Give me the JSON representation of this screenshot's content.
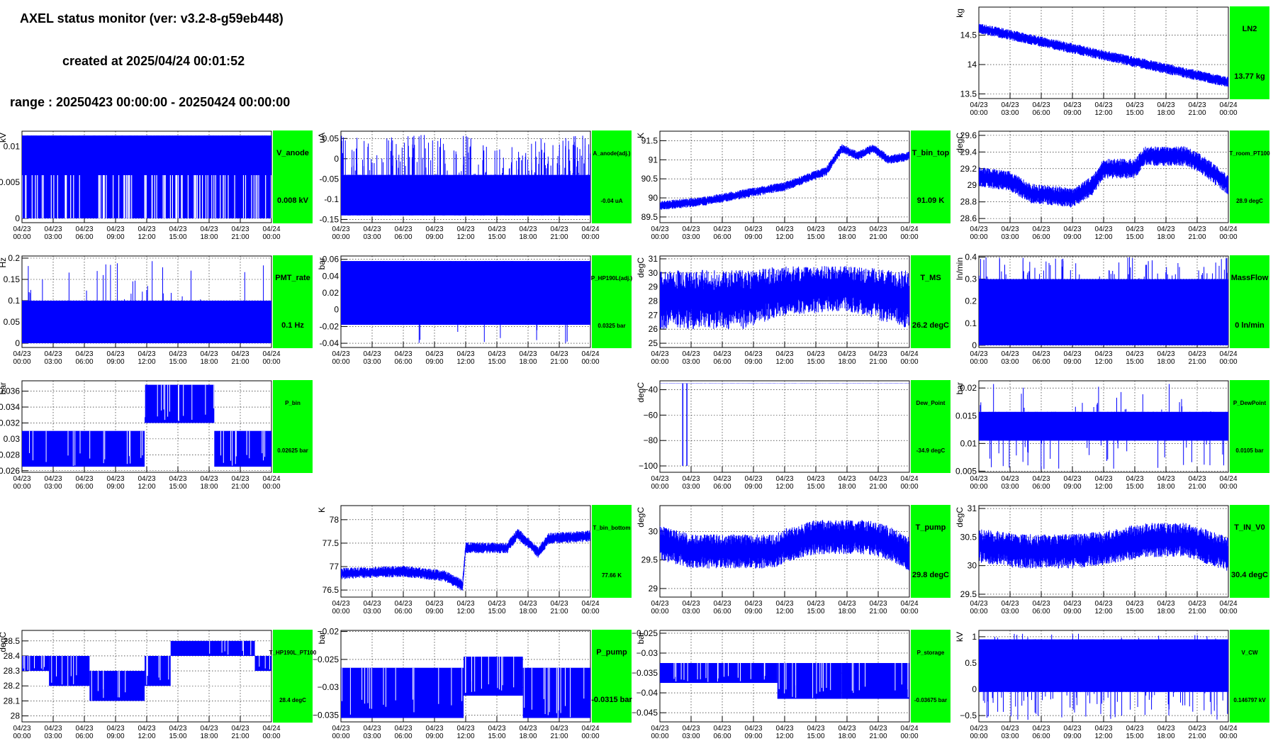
{
  "header": {
    "title": "AXEL status monitor (ver: v3.2-8-g59eb448)",
    "created": "created at 2025/04/24 00:01:52",
    "range": "range : 20250423 00:00:00 - 20250424 00:00:00"
  },
  "x_ticks": [
    [
      "04/23",
      "00:00"
    ],
    [
      "04/23",
      "03:00"
    ],
    [
      "04/23",
      "06:00"
    ],
    [
      "04/23",
      "09:00"
    ],
    [
      "04/23",
      "12:00"
    ],
    [
      "04/23",
      "15:00"
    ],
    [
      "04/23",
      "18:00"
    ],
    [
      "04/23",
      "21:00"
    ],
    [
      "04/24",
      "00:00"
    ]
  ],
  "colors": {
    "trace": "#0000ff",
    "label_box": "#00ff00",
    "grid": "#000000",
    "frame": "#000000"
  },
  "chart_data": [
    {
      "id": "ln2",
      "type": "line",
      "row": 0,
      "col": 3,
      "name": "LN2",
      "value": "13.77 kg",
      "ylabel": "kg",
      "ylim": [
        13.42,
        14.98
      ],
      "yticks": [
        {
          "v": 13.5,
          "t": "13.5"
        },
        {
          "v": 14,
          "t": "14"
        },
        {
          "v": 14.5,
          "t": "14.5"
        }
      ],
      "trend": [
        [
          0,
          14.62
        ],
        [
          24,
          13.7
        ]
      ],
      "noise": 0.09,
      "label_small": false
    },
    {
      "id": "v_anode",
      "type": "line",
      "row": 1,
      "col": 0,
      "name": "V_anode",
      "value": "0.008 kV",
      "ylabel": "kV",
      "ylim": [
        -0.0006,
        0.0121
      ],
      "yticks": [
        {
          "v": 0,
          "t": "0"
        },
        {
          "v": 0.005,
          "t": "0.005"
        },
        {
          "v": 0.01,
          "t": "0.01"
        }
      ],
      "levels": [
        0.0,
        0.0115
      ],
      "dense_band": [
        0.0,
        0.0115
      ],
      "upper_band": [
        0.006,
        0.0115
      ],
      "spikes_per_hour": 9,
      "spike_range": [
        0.0,
        0.006
      ],
      "label_small": false
    },
    {
      "id": "a_anode",
      "type": "line",
      "row": 1,
      "col": 1,
      "name": "A_anode(adj.)",
      "value": "-0.04 uA",
      "ylabel": "uA",
      "ylim": [
        -0.158,
        0.068
      ],
      "yticks": [
        {
          "v": -0.15,
          "t": "-0.15"
        },
        {
          "v": -0.1,
          "t": "-0.1"
        },
        {
          "v": -0.05,
          "t": "-0.05"
        },
        {
          "v": 0,
          "t": "0"
        },
        {
          "v": 0.05,
          "t": "0.05"
        }
      ],
      "dense_band": [
        -0.14,
        -0.04
      ],
      "spikes_per_hour": 8,
      "spike_range": [
        -0.04,
        0.06
      ],
      "label_small": true
    },
    {
      "id": "t_bin_top",
      "type": "line",
      "row": 1,
      "col": 2,
      "name": "T_bin_top",
      "value": "91.09 K",
      "ylabel": "K",
      "ylim": [
        89.35,
        91.75
      ],
      "yticks": [
        {
          "v": 89.5,
          "t": "89.5"
        },
        {
          "v": 90,
          "t": "90"
        },
        {
          "v": 90.5,
          "t": "90.5"
        },
        {
          "v": 91,
          "t": "91"
        },
        {
          "v": 91.5,
          "t": "91.5"
        }
      ],
      "trend": [
        [
          0,
          89.8
        ],
        [
          4,
          89.9
        ],
        [
          8,
          90.1
        ],
        [
          12,
          90.3
        ],
        [
          14,
          90.5
        ],
        [
          16,
          90.7
        ],
        [
          17.5,
          91.3
        ],
        [
          19,
          91.1
        ],
        [
          20.5,
          91.3
        ],
        [
          22,
          91.0
        ],
        [
          24,
          91.1
        ]
      ],
      "noise": 0.12,
      "label_small": false
    },
    {
      "id": "t_room",
      "type": "line",
      "row": 1,
      "col": 3,
      "name": "T_room_PT100",
      "value": "28.9 degC",
      "ylabel": "degC",
      "ylim": [
        28.55,
        29.65
      ],
      "yticks": [
        {
          "v": 28.6,
          "t": "28.6"
        },
        {
          "v": 28.8,
          "t": "28.8"
        },
        {
          "v": 29,
          "t": "29"
        },
        {
          "v": 29.2,
          "t": "29.2"
        },
        {
          "v": 29.4,
          "t": "29.4"
        },
        {
          "v": 29.6,
          "t": "29.6"
        }
      ],
      "trend": [
        [
          0,
          29.1
        ],
        [
          3,
          29.05
        ],
        [
          5,
          28.9
        ],
        [
          9,
          28.85
        ],
        [
          11,
          29.0
        ],
        [
          12,
          29.2
        ],
        [
          15,
          29.2
        ],
        [
          16,
          29.35
        ],
        [
          20,
          29.35
        ],
        [
          22,
          29.2
        ],
        [
          24,
          29.0
        ]
      ],
      "noise": 0.12,
      "label_small": true
    },
    {
      "id": "pmt_rate",
      "type": "line",
      "row": 2,
      "col": 0,
      "name": "PMT_rate",
      "value": "0.1 Hz",
      "ylabel": "Hz",
      "ylim": [
        -0.01,
        0.205
      ],
      "yticks": [
        {
          "v": 0,
          "t": "0"
        },
        {
          "v": 0.05,
          "t": "0.05"
        },
        {
          "v": 0.1,
          "t": "0.1"
        },
        {
          "v": 0.15,
          "t": "0.15"
        },
        {
          "v": 0.2,
          "t": "0.2"
        }
      ],
      "dense_band": [
        0.0,
        0.1
      ],
      "spikes_per_hour": 1.2,
      "spike_range": [
        0.1,
        0.2
      ],
      "label_small": false
    },
    {
      "id": "p_hp190l",
      "type": "line",
      "row": 2,
      "col": 1,
      "name": "P_HP190L(adj.)",
      "value": "0.0325 bar",
      "ylabel": "bar",
      "ylim": [
        -0.045,
        0.064
      ],
      "yticks": [
        {
          "v": -0.04,
          "t": "-0.04"
        },
        {
          "v": -0.02,
          "t": "-0.02"
        },
        {
          "v": 0,
          "t": "0"
        },
        {
          "v": 0.02,
          "t": "0.02"
        },
        {
          "v": 0.04,
          "t": "0.04"
        },
        {
          "v": 0.06,
          "t": "0.06"
        }
      ],
      "dense_band": [
        -0.018,
        0.058
      ],
      "spikes_per_hour": 2,
      "spike_range": [
        -0.04,
        0.058
      ],
      "label_small": true
    },
    {
      "id": "t_ms",
      "type": "line",
      "row": 2,
      "col": 2,
      "name": "T_MS",
      "value": "26.2 degC",
      "ylabel": "degC",
      "ylim": [
        24.7,
        31.2
      ],
      "yticks": [
        {
          "v": 25,
          "t": "25"
        },
        {
          "v": 26,
          "t": "26"
        },
        {
          "v": 27,
          "t": "27"
        },
        {
          "v": 28,
          "t": "28"
        },
        {
          "v": 29,
          "t": "29"
        },
        {
          "v": 30,
          "t": "30"
        },
        {
          "v": 31,
          "t": "31"
        }
      ],
      "trend": [
        [
          0,
          28.0
        ],
        [
          12,
          28.2
        ],
        [
          24,
          28.4
        ]
      ],
      "envelope": [
        [
          0,
          26.0,
          30.2
        ],
        [
          8,
          26.0,
          30.2
        ],
        [
          12,
          27.0,
          30.5
        ],
        [
          18,
          27.3,
          30.5
        ],
        [
          24,
          26.0,
          30.2
        ]
      ],
      "label_small": false
    },
    {
      "id": "massflow",
      "type": "line",
      "row": 2,
      "col": 3,
      "name": "MassFlow",
      "value": "0 ln/min",
      "ylabel": "ln/min",
      "ylim": [
        -0.01,
        0.405
      ],
      "yticks": [
        {
          "v": 0,
          "t": "0"
        },
        {
          "v": 0.1,
          "t": "0.1"
        },
        {
          "v": 0.2,
          "t": "0.2"
        },
        {
          "v": 0.3,
          "t": "0.3"
        },
        {
          "v": 0.4,
          "t": "0.4"
        }
      ],
      "dense_band": [
        0.0,
        0.3
      ],
      "spikes_per_hour": 3,
      "spike_range": [
        0.3,
        0.4
      ],
      "label_small": false
    },
    {
      "id": "p_bin",
      "type": "line",
      "row": 3,
      "col": 0,
      "name": "P_bin",
      "value": "0.02625 bar",
      "ylabel": "bar",
      "ylim": [
        0.0258,
        0.0373
      ],
      "yticks": [
        {
          "v": 0.026,
          "t": "0.026"
        },
        {
          "v": 0.028,
          "t": "0.028"
        },
        {
          "v": 0.03,
          "t": "0.03"
        },
        {
          "v": 0.032,
          "t": "0.032"
        },
        {
          "v": 0.034,
          "t": "0.034"
        },
        {
          "v": 0.036,
          "t": "0.036"
        }
      ],
      "steps": [
        [
          0,
          11.8,
          0.0265,
          0.031
        ],
        [
          11.8,
          18.5,
          0.032,
          0.0368
        ],
        [
          18.5,
          24,
          0.0265,
          0.031
        ]
      ],
      "label_small": true
    },
    {
      "id": "dew_point",
      "type": "line",
      "row": 3,
      "col": 2,
      "name": "Dew_Point",
      "value": "-34.9 degC",
      "ylabel": "degC",
      "ylim": [
        -105,
        -33
      ],
      "yticks": [
        {
          "v": -100,
          "t": "−100"
        },
        {
          "v": -80,
          "t": "−80"
        },
        {
          "v": -60,
          "t": "−60"
        },
        {
          "v": -40,
          "t": "−40"
        }
      ],
      "trend": [
        [
          0,
          -35
        ],
        [
          24,
          -35
        ]
      ],
      "noise": 0.1,
      "spike_down": [
        [
          2.2,
          -100
        ],
        [
          2.6,
          -100
        ]
      ],
      "label_small": true
    },
    {
      "id": "p_dewpoint",
      "type": "line",
      "row": 3,
      "col": 3,
      "name": "P_DewPoint",
      "value": "0.0105 bar",
      "ylabel": "bar",
      "ylim": [
        0.0048,
        0.0213
      ],
      "yticks": [
        {
          "v": 0.005,
          "t": "0.005"
        },
        {
          "v": 0.01,
          "t": "0.01"
        },
        {
          "v": 0.015,
          "t": "0.015"
        },
        {
          "v": 0.02,
          "t": "0.02"
        }
      ],
      "dense_band": [
        0.0105,
        0.0157
      ],
      "spikes_per_hour": 4,
      "spike_range": [
        0.0053,
        0.021
      ],
      "label_small": true
    },
    {
      "id": "t_bin_bottom",
      "type": "line",
      "row": 4,
      "col": 1,
      "name": "T_bin_bottom",
      "value": "77.66 K",
      "ylabel": "K",
      "ylim": [
        76.35,
        78.3
      ],
      "yticks": [
        {
          "v": 76.5,
          "t": "76.5"
        },
        {
          "v": 77,
          "t": "77"
        },
        {
          "v": 77.5,
          "t": "77.5"
        },
        {
          "v": 78,
          "t": "78"
        }
      ],
      "trend": [
        [
          0,
          76.85
        ],
        [
          6,
          76.9
        ],
        [
          10,
          76.8
        ],
        [
          11.7,
          76.6
        ],
        [
          12,
          77.4
        ],
        [
          16,
          77.4
        ],
        [
          17,
          77.7
        ],
        [
          19,
          77.3
        ],
        [
          20,
          77.6
        ],
        [
          24,
          77.65
        ]
      ],
      "noise": 0.12,
      "label_small": true
    },
    {
      "id": "t_pump",
      "type": "line",
      "row": 4,
      "col": 2,
      "name": "T_pump",
      "value": "29.8 degC",
      "ylabel": "degC",
      "ylim": [
        28.85,
        30.45
      ],
      "yticks": [
        {
          "v": 29,
          "t": "29"
        },
        {
          "v": 29.5,
          "t": "29.5"
        },
        {
          "v": 30,
          "t": "30"
        }
      ],
      "trend": [
        [
          0,
          29.8
        ],
        [
          3,
          29.65
        ],
        [
          5,
          29.65
        ],
        [
          11,
          29.65
        ],
        [
          12,
          29.75
        ],
        [
          15,
          29.9
        ],
        [
          20,
          29.9
        ],
        [
          22,
          29.8
        ],
        [
          24,
          29.6
        ]
      ],
      "noise": 0.3,
      "label_small": false
    },
    {
      "id": "t_in_v0",
      "type": "line",
      "row": 4,
      "col": 3,
      "name": "T_IN_V0",
      "value": "30.4 degC",
      "ylabel": "degC",
      "ylim": [
        29.45,
        31.05
      ],
      "yticks": [
        {
          "v": 29.5,
          "t": "29.5"
        },
        {
          "v": 30,
          "t": "30"
        },
        {
          "v": 30.5,
          "t": "30.5"
        },
        {
          "v": 31,
          "t": "31"
        }
      ],
      "trend": [
        [
          0,
          30.35
        ],
        [
          4,
          30.25
        ],
        [
          9,
          30.25
        ],
        [
          12,
          30.3
        ],
        [
          16,
          30.45
        ],
        [
          20,
          30.45
        ],
        [
          24,
          30.2
        ]
      ],
      "noise": 0.3,
      "label_small": false
    },
    {
      "id": "t_hp190l",
      "type": "line",
      "row": 5,
      "col": 0,
      "name": "T_HP190L_PT100",
      "value": "28.4 degC",
      "ylabel": "degC",
      "ylim": [
        27.96,
        28.57
      ],
      "yticks": [
        {
          "v": 28,
          "t": "28"
        },
        {
          "v": 28.1,
          "t": "28.1"
        },
        {
          "v": 28.2,
          "t": "28.2"
        },
        {
          "v": 28.3,
          "t": "28.3"
        },
        {
          "v": 28.4,
          "t": "28.4"
        },
        {
          "v": 28.5,
          "t": "28.5"
        }
      ],
      "steps": [
        [
          0,
          2.6,
          28.3,
          28.4
        ],
        [
          2.6,
          6.5,
          28.2,
          28.4
        ],
        [
          6.5,
          11.8,
          28.1,
          28.3
        ],
        [
          11.8,
          14.3,
          28.2,
          28.4
        ],
        [
          14.3,
          22.4,
          28.4,
          28.5
        ],
        [
          22.4,
          24,
          28.3,
          28.4
        ]
      ],
      "label_small": true
    },
    {
      "id": "p_pump",
      "type": "line",
      "row": 5,
      "col": 1,
      "name": "P_pump",
      "value": "-0.0315 bar",
      "ylabel": "bar",
      "ylim": [
        -0.0362,
        -0.0198
      ],
      "yticks": [
        {
          "v": -0.035,
          "t": "−0.035"
        },
        {
          "v": -0.03,
          "t": "−0.03"
        },
        {
          "v": -0.025,
          "t": "−0.025"
        },
        {
          "v": -0.02,
          "t": "−0.02"
        }
      ],
      "steps": [
        [
          0,
          11.8,
          -0.0355,
          -0.0265
        ],
        [
          11.8,
          17.5,
          -0.0315,
          -0.0245
        ],
        [
          17.5,
          24,
          -0.0355,
          -0.0265
        ]
      ],
      "label_small": false
    },
    {
      "id": "p_storage",
      "type": "line",
      "row": 5,
      "col": 2,
      "name": "P_storage",
      "value": "-0.03675 bar",
      "ylabel": "bar",
      "ylim": [
        -0.0473,
        -0.0243
      ],
      "yticks": [
        {
          "v": -0.045,
          "t": "−0.045"
        },
        {
          "v": -0.04,
          "t": "−0.04"
        },
        {
          "v": -0.035,
          "t": "−0.035"
        },
        {
          "v": -0.03,
          "t": "−0.03"
        },
        {
          "v": -0.025,
          "t": "−0.025"
        }
      ],
      "steps": [
        [
          0,
          11.3,
          -0.0375,
          -0.0325
        ],
        [
          11.3,
          17.5,
          -0.0415,
          -0.0325
        ],
        [
          17.5,
          24,
          -0.0415,
          -0.0325
        ]
      ],
      "label_small": true
    },
    {
      "id": "v_cw",
      "type": "line",
      "row": 5,
      "col": 3,
      "name": "V_CW",
      "value": "0.146797 kV",
      "ylabel": "kV",
      "ylim": [
        -0.62,
        1.12
      ],
      "yticks": [
        {
          "v": -0.5,
          "t": "−0.5"
        },
        {
          "v": 0,
          "t": "0"
        },
        {
          "v": 0.5,
          "t": "0.5"
        },
        {
          "v": 1,
          "t": "1"
        }
      ],
      "dense_band": [
        -0.05,
        0.95
      ],
      "spikes_per_hour": 10,
      "spike_range": [
        -0.58,
        1.06
      ],
      "label_small": true
    }
  ]
}
